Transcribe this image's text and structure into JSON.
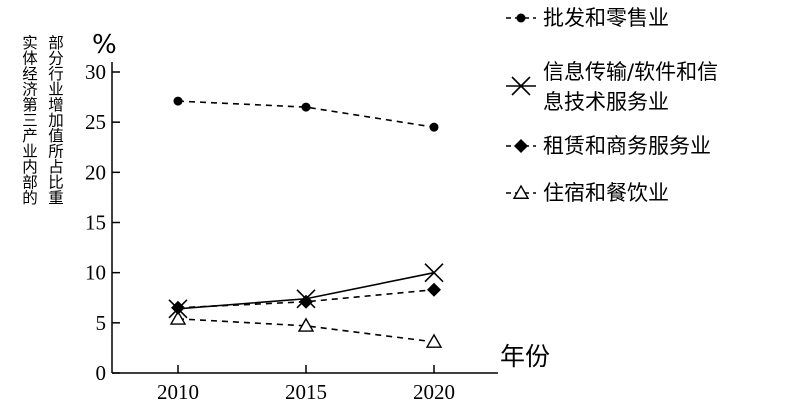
{
  "chart_data": {
    "type": "line",
    "x": [
      2010,
      2015,
      2020
    ],
    "xlabel": "年份",
    "ylabel": "实体经济第三产业内部的部分行业增加值所占比重",
    "yunit": "%",
    "ylim": [
      0,
      30
    ],
    "yticks": [
      0,
      5,
      10,
      15,
      20,
      25,
      30
    ],
    "grid": false,
    "legend_position": "right",
    "series": [
      {
        "name": "批发和零售业",
        "values": [
          27.1,
          26.5,
          24.5
        ],
        "marker": "circle",
        "line": "dashed"
      },
      {
        "name": "信息传输/软件和信息技术服务业",
        "name_lines": [
          "信息传输/软件和信",
          "息技术服务业"
        ],
        "values": [
          6.4,
          7.4,
          10.0
        ],
        "marker": "x",
        "line": "solid"
      },
      {
        "name": "租赁和商务服务业",
        "values": [
          6.5,
          7.1,
          8.3
        ],
        "marker": "diamond",
        "line": "dashed"
      },
      {
        "name": "住宿和餐饮业",
        "values": [
          5.4,
          4.7,
          3.1
        ],
        "marker": "triangle-open",
        "line": "dashed"
      }
    ]
  }
}
